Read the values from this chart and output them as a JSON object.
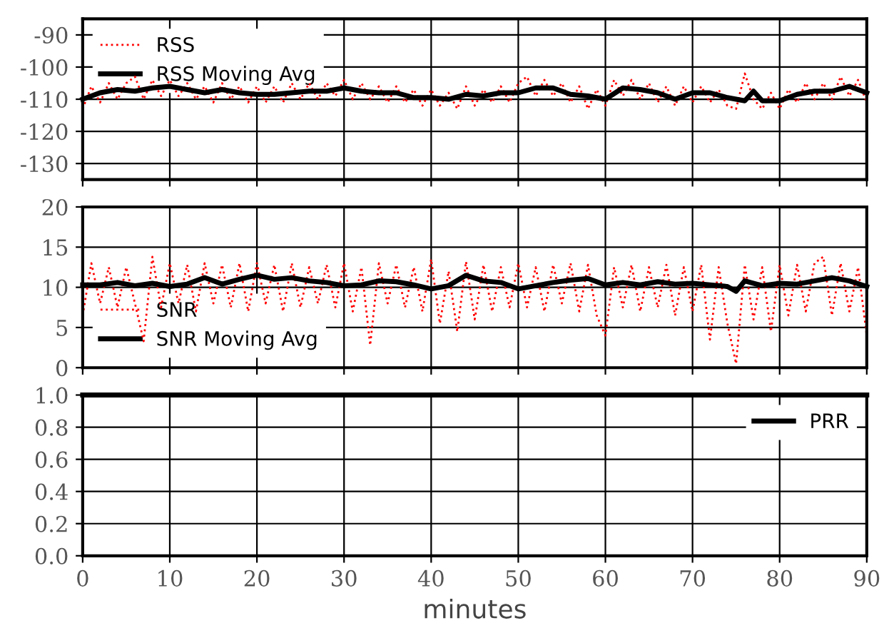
{
  "chart_data": [
    {
      "type": "line",
      "xlim": [
        0,
        90
      ],
      "xticks": [
        0,
        10,
        20,
        30,
        40,
        50,
        60,
        70,
        80,
        90
      ],
      "ylim": [
        -135,
        -85
      ],
      "yticks": [
        -130,
        -120,
        -110,
        -100,
        -90
      ],
      "grid": true,
      "legend": "top left",
      "tick_labels": "y",
      "series": [
        {
          "name": "RSS",
          "color": "#ff0000",
          "line_style": "dotted",
          "x": [
            0,
            1,
            2,
            3,
            4,
            5,
            6,
            7,
            8,
            9,
            10,
            11,
            12,
            13,
            14,
            15,
            16,
            17,
            18,
            19,
            20,
            21,
            22,
            23,
            24,
            25,
            26,
            27,
            28,
            29,
            30,
            31,
            32,
            33,
            34,
            35,
            36,
            37,
            38,
            39,
            40,
            41,
            42,
            43,
            44,
            45,
            46,
            47,
            48,
            49,
            50,
            51,
            52,
            53,
            54,
            55,
            56,
            57,
            58,
            59,
            60,
            61,
            62,
            63,
            64,
            65,
            66,
            67,
            68,
            69,
            70,
            71,
            72,
            73,
            74,
            75,
            76,
            77,
            78,
            79,
            80,
            81,
            82,
            83,
            84,
            85,
            86,
            87,
            88,
            89,
            90
          ],
          "values": [
            -113,
            -106,
            -111,
            -105,
            -110,
            -105,
            -103,
            -110,
            -104,
            -109,
            -104,
            -109,
            -105,
            -110,
            -106,
            -111,
            -105,
            -110,
            -106,
            -111,
            -106,
            -111,
            -106,
            -111,
            -105,
            -110,
            -105,
            -110,
            -105,
            -109,
            -104,
            -110,
            -105,
            -110,
            -106,
            -111,
            -106,
            -111,
            -107,
            -112,
            -107,
            -112,
            -108,
            -113,
            -106,
            -112,
            -107,
            -111,
            -106,
            -111,
            -105,
            -103,
            -109,
            -104,
            -109,
            -105,
            -111,
            -106,
            -113,
            -107,
            -112,
            -104,
            -109,
            -104,
            -110,
            -105,
            -111,
            -106,
            -112,
            -106,
            -111,
            -106,
            -111,
            -107,
            -112,
            -113,
            -102,
            -110,
            -113,
            -108,
            -113,
            -107,
            -111,
            -105,
            -110,
            -105,
            -110,
            -103,
            -109,
            -104,
            -111
          ]
        },
        {
          "name": "RSS Moving Avg",
          "color": "#000000",
          "line_style": "solid",
          "x": [
            0,
            2,
            4,
            6,
            8,
            10,
            12,
            14,
            16,
            18,
            20,
            22,
            24,
            26,
            28,
            30,
            32,
            34,
            36,
            38,
            40,
            42,
            44,
            46,
            48,
            50,
            52,
            54,
            56,
            58,
            60,
            62,
            64,
            66,
            68,
            70,
            72,
            74,
            76,
            77,
            78,
            80,
            82,
            84,
            86,
            88,
            90
          ],
          "values": [
            -110,
            -108,
            -107,
            -107.5,
            -106.5,
            -106,
            -107,
            -108,
            -107,
            -108,
            -108.5,
            -108.5,
            -108,
            -107.5,
            -107.5,
            -106.5,
            -107.5,
            -108,
            -108,
            -109.5,
            -109.5,
            -110,
            -108.5,
            -109,
            -108,
            -108,
            -106.5,
            -106.5,
            -108.5,
            -109,
            -110,
            -106.5,
            -107,
            -108,
            -110,
            -108,
            -108,
            -109.5,
            -110.5,
            -107.5,
            -110.5,
            -110.5,
            -108.5,
            -107.5,
            -107.5,
            -106,
            -108
          ]
        }
      ]
    },
    {
      "type": "line",
      "xlim": [
        0,
        90
      ],
      "xticks": [
        0,
        10,
        20,
        30,
        40,
        50,
        60,
        70,
        80,
        90
      ],
      "ylim": [
        0,
        20
      ],
      "yticks": [
        0,
        5,
        10,
        15,
        20
      ],
      "grid": true,
      "legend": "bottom left",
      "tick_labels": "y",
      "series": [
        {
          "name": "SNR",
          "color": "#ff0000",
          "line_style": "dotted",
          "x": [
            0,
            1,
            2,
            3,
            4,
            5,
            6,
            7,
            8,
            9,
            10,
            11,
            12,
            13,
            14,
            15,
            16,
            17,
            18,
            19,
            20,
            21,
            22,
            23,
            24,
            25,
            26,
            27,
            28,
            29,
            30,
            31,
            32,
            33,
            34,
            35,
            36,
            37,
            38,
            39,
            40,
            41,
            42,
            43,
            44,
            45,
            46,
            47,
            48,
            49,
            50,
            51,
            52,
            53,
            54,
            55,
            56,
            57,
            58,
            59,
            60,
            61,
            62,
            63,
            64,
            65,
            66,
            67,
            68,
            69,
            70,
            71,
            72,
            73,
            74,
            75,
            76,
            77,
            78,
            79,
            80,
            81,
            82,
            83,
            84,
            85,
            86,
            87,
            88,
            89,
            90
          ],
          "values": [
            6.5,
            13,
            8,
            12.5,
            7.5,
            12.5,
            8,
            3.3,
            13.8,
            7.5,
            13,
            8,
            12.8,
            7,
            13,
            8,
            12.8,
            7.5,
            13,
            7,
            13,
            8,
            12.8,
            7,
            13,
            7.5,
            12.5,
            8,
            12.8,
            7.5,
            13,
            7,
            12.5,
            2.8,
            13,
            8,
            12.8,
            7.5,
            12.5,
            7,
            13.5,
            5.5,
            12,
            4.5,
            13.2,
            6,
            12.8,
            7,
            12.5,
            7.5,
            13,
            7.5,
            12.5,
            7,
            12.8,
            8,
            13,
            7,
            12.8,
            6.5,
            4,
            12.5,
            7.5,
            12.8,
            7,
            12.5,
            7.5,
            12.8,
            6.5,
            12.5,
            7,
            12.8,
            3.5,
            12.5,
            5.5,
            0.5,
            12.8,
            6,
            12.5,
            4.5,
            12.8,
            6.5,
            12.8,
            7,
            13,
            13.8,
            6.5,
            13,
            7,
            12.5,
            4
          ]
        },
        {
          "name": "SNR Moving Avg",
          "color": "#000000",
          "line_style": "solid",
          "x": [
            0,
            2,
            4,
            6,
            8,
            10,
            12,
            14,
            16,
            18,
            20,
            22,
            24,
            26,
            28,
            30,
            32,
            34,
            36,
            38,
            40,
            42,
            44,
            46,
            48,
            50,
            52,
            54,
            56,
            58,
            60,
            62,
            64,
            66,
            68,
            70,
            72,
            74,
            75,
            76,
            78,
            80,
            82,
            84,
            86,
            88,
            90
          ],
          "values": [
            10.3,
            10.3,
            10.6,
            10.2,
            10.5,
            10.1,
            10.4,
            11.2,
            10.4,
            11,
            11.5,
            11,
            11.2,
            10.8,
            10.6,
            10.2,
            10.3,
            10.8,
            10.7,
            10.3,
            9.8,
            10.2,
            11.5,
            10.8,
            10.6,
            9.8,
            10.2,
            10.6,
            10.9,
            11.1,
            10.3,
            10.6,
            10.3,
            10.7,
            10.4,
            10.5,
            10.3,
            10.1,
            9.5,
            10.8,
            10.2,
            10.5,
            10.4,
            10.8,
            11.2,
            10.8,
            10.1
          ]
        }
      ]
    },
    {
      "type": "line",
      "xlim": [
        0,
        90
      ],
      "xticks": [
        0,
        10,
        20,
        30,
        40,
        50,
        60,
        70,
        80,
        90
      ],
      "ylim": [
        0,
        1.0
      ],
      "yticks": [
        {
          "value": 0,
          "label": "0.0"
        },
        {
          "value": 0.2,
          "label": "0.2"
        },
        {
          "value": 0.4,
          "label": "0.4"
        },
        {
          "value": 0.6,
          "label": "0.6"
        },
        {
          "value": 0.8,
          "label": "0.8"
        },
        {
          "value": 1,
          "label": "1.0"
        }
      ],
      "grid": true,
      "legend": "top right",
      "xlabel": "minutes",
      "series": [
        {
          "name": "PRR",
          "color": "#000000",
          "line_style": "solid",
          "x": [
            0,
            90
          ],
          "values": [
            1,
            1
          ]
        }
      ]
    }
  ]
}
